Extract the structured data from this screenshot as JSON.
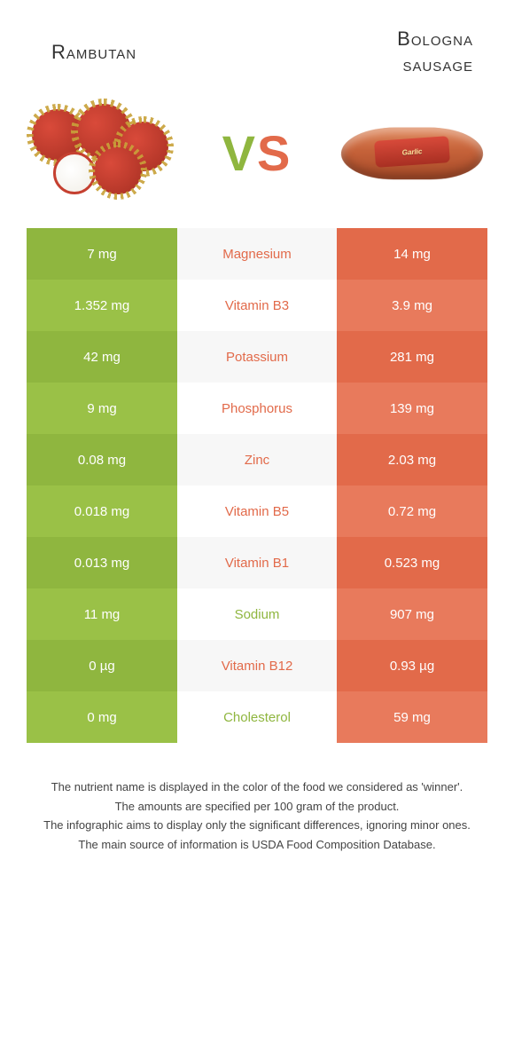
{
  "header": {
    "left_title": "Rambutan",
    "right_title_line1": "Bologna",
    "right_title_line2": "sausage",
    "vs_v": "V",
    "vs_s": "S"
  },
  "colors": {
    "left": "#8fb63f",
    "left_alt": "#9ac147",
    "right": "#e26a4a",
    "right_alt": "#e87a5c",
    "mid": "#f7f7f7",
    "mid_alt": "#ffffff",
    "text_white": "#ffffff"
  },
  "nutrients": [
    {
      "name": "Magnesium",
      "left": "7 mg",
      "right": "14 mg",
      "winner": "right"
    },
    {
      "name": "Vitamin B3",
      "left": "1.352 mg",
      "right": "3.9 mg",
      "winner": "right"
    },
    {
      "name": "Potassium",
      "left": "42 mg",
      "right": "281 mg",
      "winner": "right"
    },
    {
      "name": "Phosphorus",
      "left": "9 mg",
      "right": "139 mg",
      "winner": "right"
    },
    {
      "name": "Zinc",
      "left": "0.08 mg",
      "right": "2.03 mg",
      "winner": "right"
    },
    {
      "name": "Vitamin B5",
      "left": "0.018 mg",
      "right": "0.72 mg",
      "winner": "right"
    },
    {
      "name": "Vitamin B1",
      "left": "0.013 mg",
      "right": "0.523 mg",
      "winner": "right"
    },
    {
      "name": "Sodium",
      "left": "11 mg",
      "right": "907 mg",
      "winner": "left"
    },
    {
      "name": "Vitamin B12",
      "left": "0 µg",
      "right": "0.93 µg",
      "winner": "right"
    },
    {
      "name": "Cholesterol",
      "left": "0 mg",
      "right": "59 mg",
      "winner": "left"
    }
  ],
  "footnotes": [
    "The nutrient name is displayed in the color of the food we considered as 'winner'.",
    "The amounts are specified per 100 gram of the product.",
    "The infographic aims to display only the significant differences, ignoring minor ones.",
    "The main source of information is USDA Food Composition Database."
  ],
  "sausage_label": "Garlic"
}
